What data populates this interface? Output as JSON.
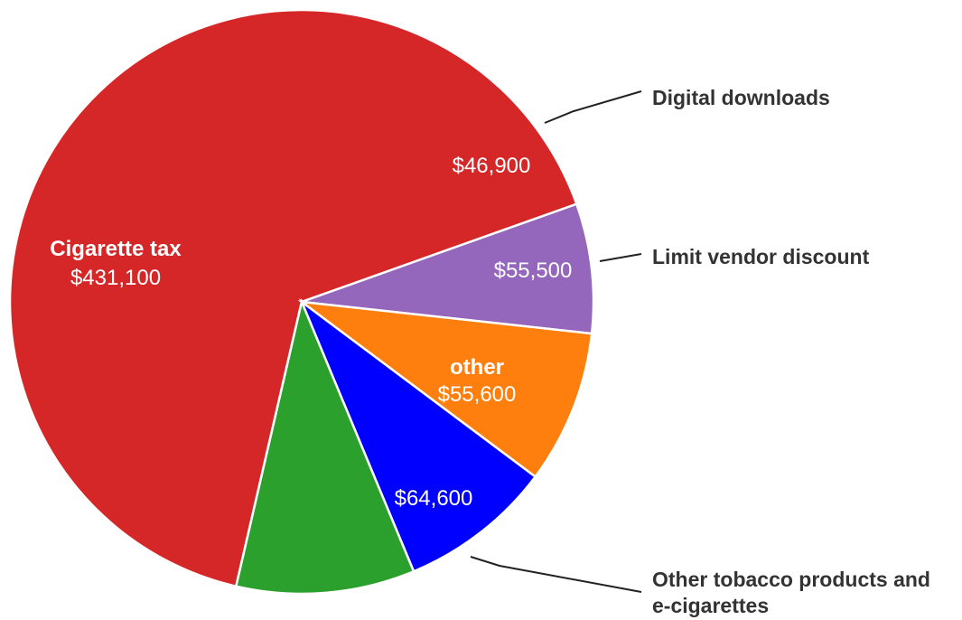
{
  "chart_data": {
    "type": "pie",
    "title": "",
    "slices": [
      {
        "id": "cigarette-tax",
        "name": "Cigarette tax",
        "value": 431100,
        "value_label": "$431,100",
        "color": "#d62728"
      },
      {
        "id": "digital-downloads",
        "name": "Digital downloads",
        "value": 46900,
        "value_label": "$46,900",
        "color": "#9467bd"
      },
      {
        "id": "limit-vendor-discount",
        "name": "Limit vendor discount",
        "value": 55500,
        "value_label": "$55,500",
        "color": "#ff7f0e"
      },
      {
        "id": "other",
        "name": "other",
        "value": 55600,
        "value_label": "$55,600",
        "color": "#0000ff"
      },
      {
        "id": "other-tobacco",
        "name": "Other tobacco products and e-cigarettes",
        "name_lines": [
          "Other tobacco products and",
          "e-cigarettes"
        ],
        "value": 64600,
        "value_label": "$64,600",
        "color": "#2ca02c"
      }
    ]
  }
}
